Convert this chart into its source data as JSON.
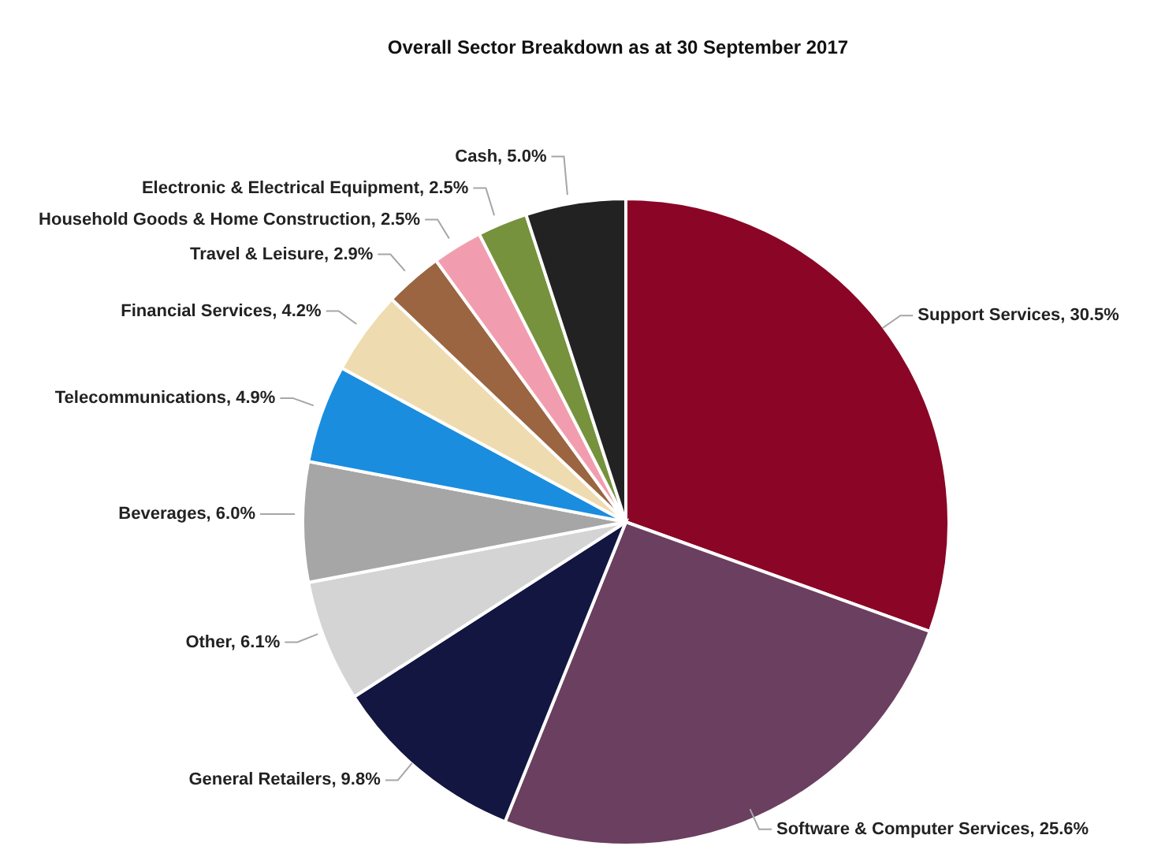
{
  "chart_data": {
    "type": "pie",
    "title": "Overall Sector Breakdown as at 30 September 2017",
    "categories": [
      "Support Services",
      "Software & Computer Services",
      "General Retailers",
      "Other",
      "Beverages",
      "Telecommunications",
      "Financial Services",
      "Travel & Leisure",
      "Household Goods & Home Construction",
      "Electronic & Electrical Equipment",
      "Cash"
    ],
    "values": [
      30.5,
      25.6,
      9.8,
      6.1,
      6.0,
      4.9,
      4.2,
      2.9,
      2.5,
      2.5,
      5.0
    ],
    "colors": [
      "#8a0526",
      "#6b3f5f",
      "#131640",
      "#d4d4d4",
      "#a6a6a6",
      "#1a8ddf",
      "#efdbb0",
      "#9a6540",
      "#f29daf",
      "#76923c",
      "#222222"
    ],
    "value_labels": [
      "30.5%",
      "25.6%",
      "9.8%",
      "6.1%",
      "6.0%",
      "4.9%",
      "4.2%",
      "2.9%",
      "2.5%",
      "2.5%",
      "5.0%"
    ]
  }
}
